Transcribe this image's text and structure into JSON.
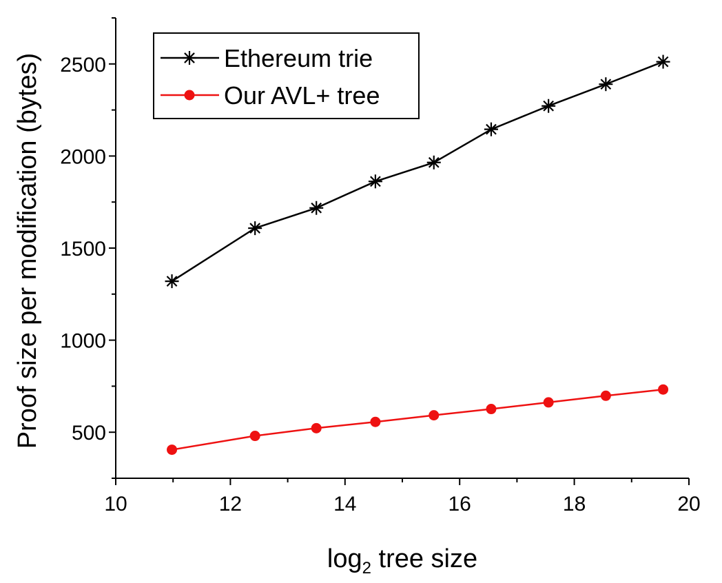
{
  "chart_data": {
    "type": "line",
    "xlabel": "log",
    "xlabel_subscript": "2",
    "xlabel_rest": " tree size",
    "ylabel": "Proof size per modification (bytes)",
    "xlim": [
      10,
      20
    ],
    "ylim": [
      250,
      2750
    ],
    "x_ticks": [
      10,
      12,
      14,
      16,
      18,
      20
    ],
    "y_ticks": [
      500,
      1000,
      1500,
      2000,
      2500
    ],
    "grid": false,
    "legend_placement": "top-left",
    "series": [
      {
        "name": "Ethereum trie",
        "color": "#000000",
        "marker": "asterisk",
        "x": [
          10.98,
          12.43,
          13.5,
          14.53,
          15.55,
          16.55,
          17.55,
          18.55,
          19.55
        ],
        "y": [
          1320,
          1608,
          1718,
          1862,
          1965,
          2145,
          2272,
          2390,
          2512
        ]
      },
      {
        "name": "Our AVL+ tree",
        "color": "#ee1111",
        "marker": "circle",
        "x": [
          10.98,
          12.43,
          13.5,
          14.53,
          15.55,
          16.55,
          17.55,
          18.55,
          19.55
        ],
        "y": [
          405,
          480,
          522,
          556,
          592,
          626,
          662,
          698,
          732
        ]
      }
    ]
  }
}
